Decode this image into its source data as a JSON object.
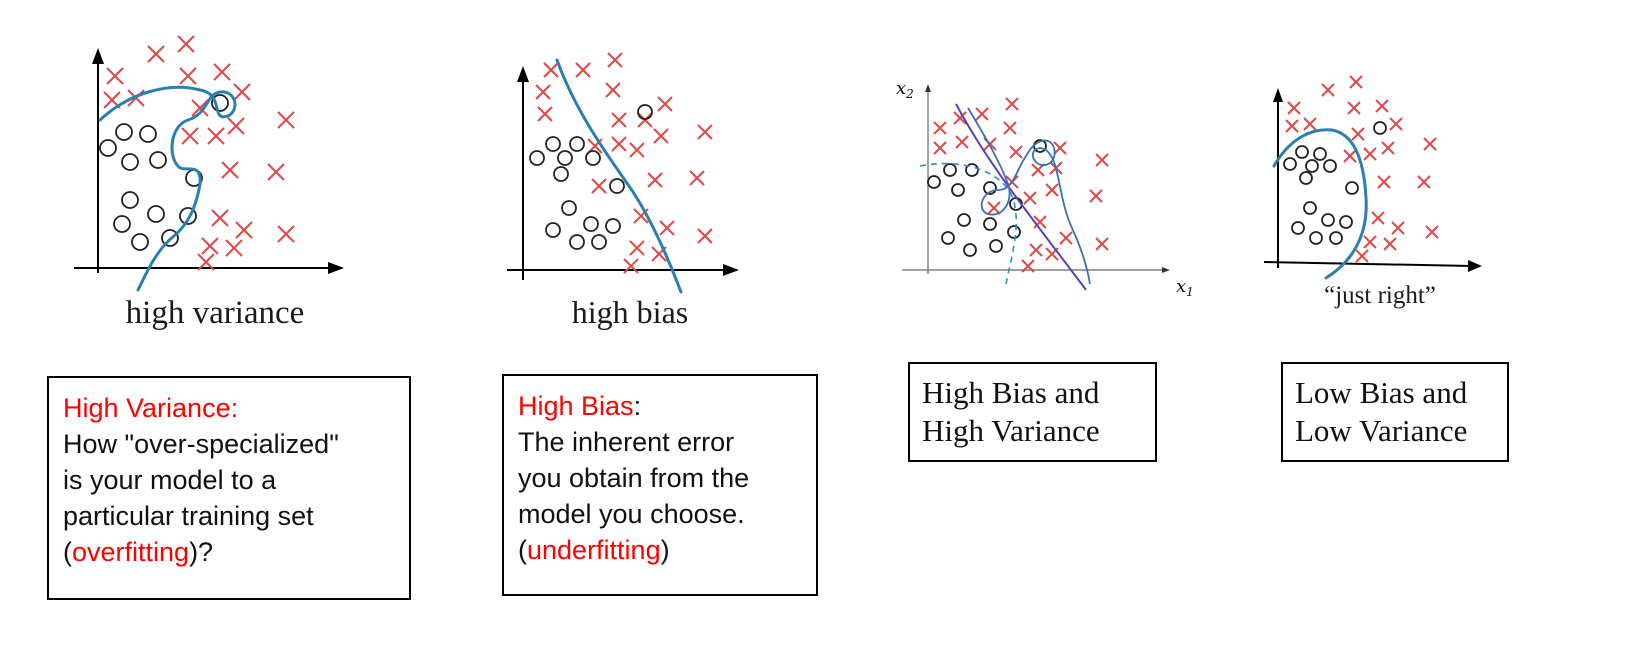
{
  "panels": [
    {
      "id": "high-variance",
      "caption": "high variance"
    },
    {
      "id": "high-bias",
      "caption": "high bias"
    },
    {
      "id": "high-bias-high-variance",
      "caption": "",
      "axis_x": "x",
      "axis_x_sub": "1",
      "axis_y": "x",
      "axis_y_sub": "2"
    },
    {
      "id": "just-right",
      "caption": "“just right”"
    }
  ],
  "boxes": {
    "variance": {
      "title": "High Variance:",
      "line1": "How \"over-specialized\"",
      "line2": "is your model to a",
      "line3": "particular training set",
      "paren_open": "(",
      "highlight": "overfitting",
      "paren_close": ")?"
    },
    "bias": {
      "title": "High Bias",
      "colon": ":",
      "line1": "The inherent error",
      "line2": "you obtain from the",
      "line3": "model you choose.",
      "paren_open": "(",
      "highlight": "underfitting",
      "paren_close": ")"
    },
    "both": {
      "line1": "High Bias and",
      "line2": "High Variance"
    },
    "low": {
      "line1": "Low Bias and",
      "line2": "Low Variance"
    }
  },
  "colors": {
    "cross": "#e04848",
    "circle": "#222222",
    "boundary": "#2b7fb0",
    "highlight": "#ff0000"
  }
}
